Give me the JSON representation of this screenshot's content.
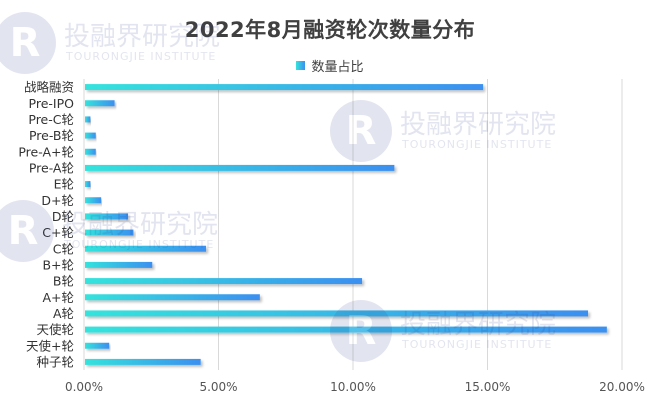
{
  "chart_data": {
    "type": "bar",
    "orientation": "horizontal",
    "title": "2022年8月融资轮次数量分布",
    "categories": [
      "战略融资",
      "Pre-IPO",
      "Pre-C轮",
      "Pre-B轮",
      "Pre-A+轮",
      "Pre-A轮",
      "E轮",
      "D+轮",
      "D轮",
      "C+轮",
      "C轮",
      "B+轮",
      "B轮",
      "A+轮",
      "A轮",
      "天使轮",
      "天使+轮",
      "种子轮"
    ],
    "series": [
      {
        "name": "数量占比",
        "values": [
          14.8,
          1.1,
          0.2,
          0.4,
          0.4,
          11.5,
          0.2,
          0.6,
          1.6,
          1.8,
          4.5,
          2.5,
          10.3,
          6.5,
          18.7,
          19.4,
          0.9,
          4.3
        ]
      }
    ],
    "xlim": [
      0,
      20
    ],
    "xticks": [
      0,
      5,
      10,
      15,
      20
    ],
    "xtick_labels": [
      "0.00%",
      "5.00%",
      "10.00%",
      "15.00%",
      "20.00%"
    ],
    "grid": "vertical",
    "legend": "top",
    "colors": {
      "bar_start": "#35e3dc",
      "bar_end": "#3b8ff0",
      "grid": "#d9d9d9"
    }
  },
  "watermark": {
    "cn": "投融界研究院",
    "en": "TOURONGJIE INSTITUTE"
  }
}
